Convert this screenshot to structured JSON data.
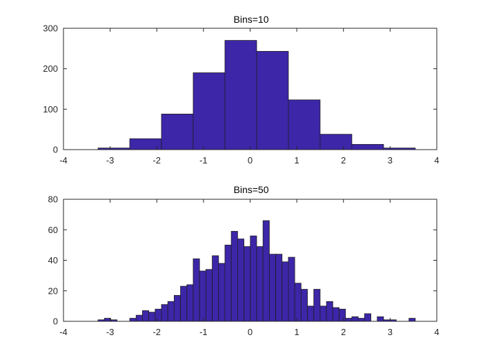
{
  "colors": {
    "bar_fill": "#3d26a8",
    "bar_edge": "#1f1f1f",
    "axis": "#262626",
    "background": "#ffffff"
  },
  "chart_data": [
    {
      "type": "bar",
      "title": "Bins=10",
      "xlabel": "",
      "ylabel": "",
      "xlim": [
        -4,
        4
      ],
      "ylim": [
        0,
        300
      ],
      "xticks": [
        -4,
        -3,
        -2,
        -1,
        0,
        1,
        2,
        3,
        4
      ],
      "yticks": [
        0,
        100,
        200,
        300
      ],
      "bin_edges": [
        -3.26,
        -2.58,
        -1.9,
        -1.22,
        -0.54,
        0.14,
        0.82,
        1.5,
        2.18,
        2.86,
        3.54
      ],
      "values": [
        4,
        27,
        88,
        190,
        270,
        243,
        123,
        38,
        13,
        4
      ],
      "grid": false
    },
    {
      "type": "bar",
      "title": "Bins=50",
      "xlabel": "",
      "ylabel": "",
      "xlim": [
        -4,
        4
      ],
      "ylim": [
        0,
        80
      ],
      "xticks": [
        -4,
        -3,
        -2,
        -1,
        0,
        1,
        2,
        3,
        4
      ],
      "yticks": [
        0,
        20,
        40,
        60,
        80
      ],
      "bin_edges_start": -3.26,
      "bin_width": 0.136,
      "values": [
        1,
        2,
        1,
        0,
        0,
        2,
        4,
        7,
        6,
        8,
        11,
        13,
        17,
        23,
        24,
        41,
        33,
        34,
        43,
        38,
        50,
        59,
        54,
        49,
        56,
        49,
        66,
        44,
        44,
        39,
        42,
        25,
        21,
        10,
        21,
        10,
        13,
        9,
        8,
        2,
        3,
        2,
        5,
        0,
        3,
        1,
        1,
        0,
        0,
        2
      ],
      "grid": false
    }
  ]
}
